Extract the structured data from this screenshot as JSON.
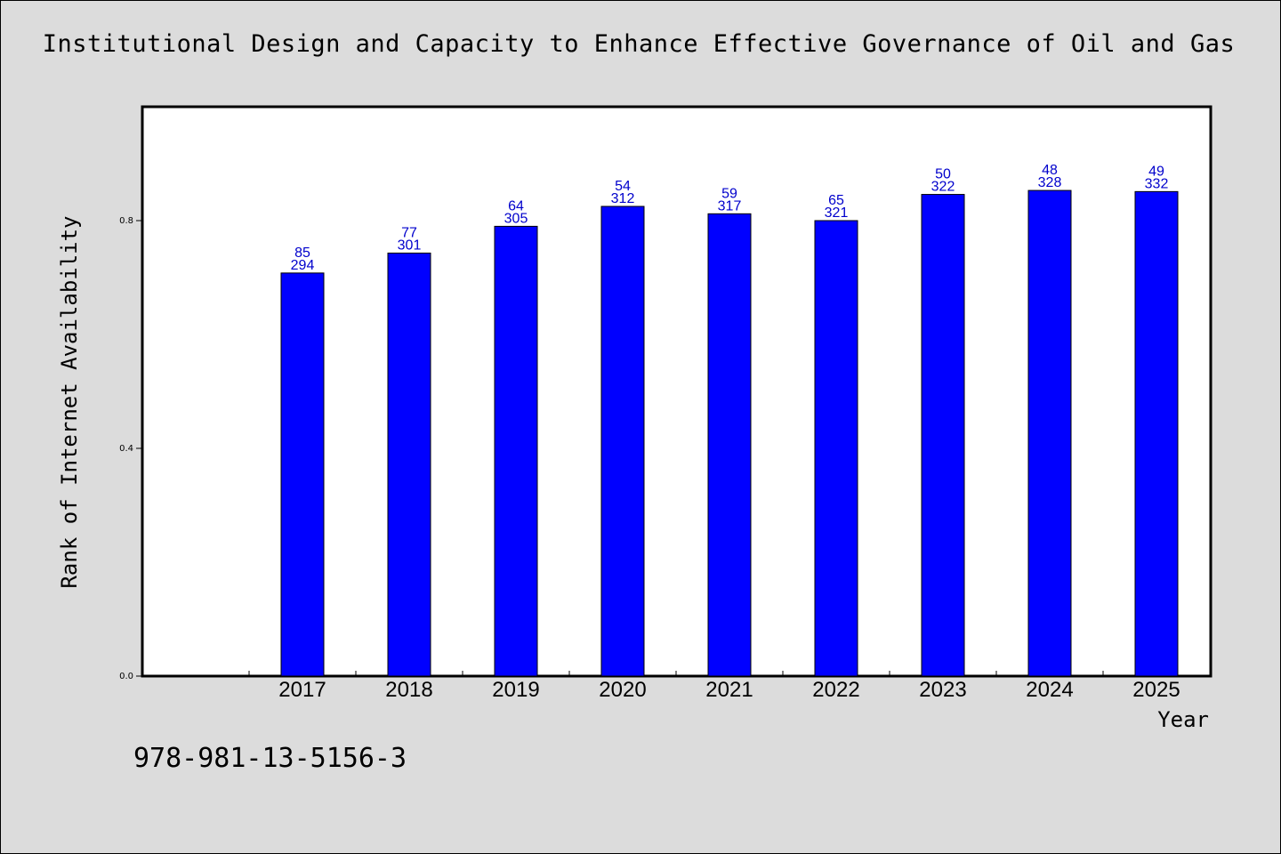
{
  "chart_data": {
    "type": "bar",
    "title": "Institutional Design and Capacity to Enhance Effective Governance of Oil and Gas",
    "xlabel": "Year",
    "ylabel": "Rank of Internet Availability",
    "categories": [
      "2017",
      "2018",
      "2019",
      "2020",
      "2021",
      "2022",
      "2023",
      "2024",
      "2025"
    ],
    "values": [
      0.708,
      0.743,
      0.79,
      0.825,
      0.812,
      0.8,
      0.846,
      0.853,
      0.851
    ],
    "label_top": [
      "85",
      "77",
      "64",
      "54",
      "59",
      "65",
      "50",
      "48",
      "49"
    ],
    "label_bottom": [
      "294",
      "301",
      "305",
      "312",
      "317",
      "321",
      "322",
      "328",
      "332"
    ],
    "ylim": [
      0,
      1.0
    ],
    "yticks": [
      0.0,
      0.4,
      0.8
    ],
    "ytick_labels": [
      "0.0",
      "0.4",
      "0.8"
    ],
    "grid": false,
    "bar_color": "#0000ff",
    "label_color": "#0000cc"
  },
  "footer": {
    "isbn": "978-981-13-5156-3"
  }
}
